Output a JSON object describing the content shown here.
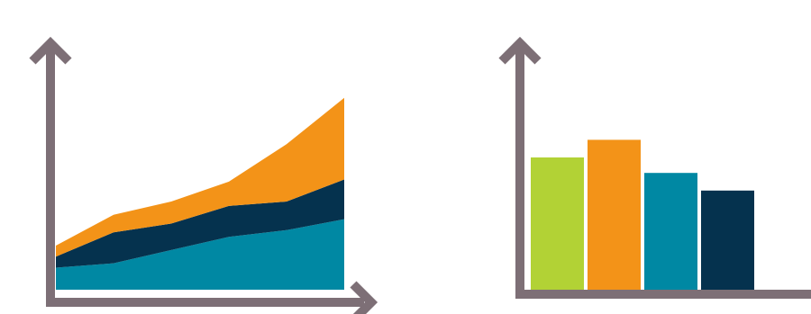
{
  "colors": {
    "axis": "#7d6f76",
    "teal": "#0088a3",
    "navy": "#05324e",
    "orange": "#f39318",
    "lime": "#b2d235"
  },
  "chart_data": [
    {
      "type": "area",
      "stacked": true,
      "x": [
        1,
        2,
        3,
        4,
        5,
        6
      ],
      "ylim": [
        0,
        100
      ],
      "xlabel": "",
      "ylabel": "",
      "title": "",
      "grid": false,
      "legend": "none",
      "arrowheads": true,
      "series": [
        {
          "color_key": "teal",
          "values": [
            10,
            12,
            18,
            24,
            27,
            32
          ]
        },
        {
          "color_key": "navy",
          "values": [
            5,
            14,
            12,
            14,
            13,
            18
          ]
        },
        {
          "color_key": "orange",
          "values": [
            5,
            8,
            10,
            11,
            26,
            37
          ]
        }
      ]
    },
    {
      "type": "bar",
      "categories": [
        "",
        "",
        "",
        ""
      ],
      "values": [
        60,
        68,
        53,
        45
      ],
      "bar_color_keys": [
        "lime",
        "orange",
        "teal",
        "navy"
      ],
      "ylim": [
        0,
        100
      ],
      "xlabel": "",
      "ylabel": "",
      "title": "",
      "grid": false,
      "legend": "none",
      "arrowheads": true
    }
  ]
}
